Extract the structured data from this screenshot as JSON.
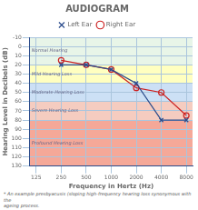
{
  "chart_data": {
    "type": "line",
    "title": "AUDIOGRAM",
    "xlabel": "Frequency in Hertz (Hz)",
    "ylabel": "Hearing Level in Decibels (dB)",
    "x": [
      250,
      500,
      1000,
      2000,
      4000,
      8000
    ],
    "series": [
      {
        "name": "Left Ear",
        "color": "#2b4c8c",
        "marker": "x",
        "values": [
          20,
          20,
          25,
          40,
          80,
          80
        ]
      },
      {
        "name": "Right Ear",
        "color": "#cc2222",
        "marker": "circle",
        "values": [
          15,
          20,
          25,
          45,
          50,
          75
        ]
      }
    ],
    "log": "x",
    "xlim": [
      105,
      9500
    ],
    "xticks": [
      125,
      250,
      500,
      1000,
      2000,
      4000,
      8000
    ],
    "ylim": [
      130,
      -10
    ],
    "yticks": [
      -10,
      0,
      10,
      20,
      30,
      40,
      50,
      60,
      70,
      80,
      90,
      100,
      110,
      120,
      130
    ],
    "grid": true,
    "legend": "top",
    "bands": [
      {
        "label": "Normal Hearing",
        "y_min": -10,
        "y_max": 20,
        "color": "#e8f5e8"
      },
      {
        "label": "Mild Hearing Loss",
        "y_min": 20,
        "y_max": 40,
        "color": "#ffffc0"
      },
      {
        "label": "Moderate Hearing Loss",
        "y_min": 40,
        "y_max": 60,
        "color": "#cce0f5"
      },
      {
        "label": "Severe Hearing Loss",
        "y_min": 60,
        "y_max": 80,
        "color": "#f5ccc0"
      },
      {
        "label": "Profound Hearing Loss",
        "y_min": 80,
        "y_max": 130,
        "color": "#f5a898"
      }
    ],
    "annotations": [
      "* An example presbyacusis (sloping high-frequency hearing loss synonymous with the\nageing process."
    ]
  }
}
